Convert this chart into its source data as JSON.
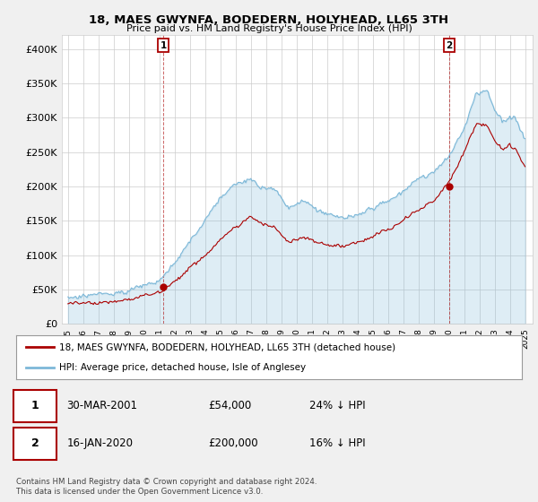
{
  "title": "18, MAES GWYNFA, BODEDERN, HOLYHEAD, LL65 3TH",
  "subtitle": "Price paid vs. HM Land Registry's House Price Index (HPI)",
  "legend_line1": "18, MAES GWYNFA, BODEDERN, HOLYHEAD, LL65 3TH (detached house)",
  "legend_line2": "HPI: Average price, detached house, Isle of Anglesey",
  "annotation1_label": "1",
  "annotation1_date": "30-MAR-2001",
  "annotation1_price": "£54,000",
  "annotation1_hpi": "24% ↓ HPI",
  "annotation2_label": "2",
  "annotation2_date": "16-JAN-2020",
  "annotation2_price": "£200,000",
  "annotation2_hpi": "16% ↓ HPI",
  "footer": "Contains HM Land Registry data © Crown copyright and database right 2024.\nThis data is licensed under the Open Government Licence v3.0.",
  "ylim": [
    0,
    420000
  ],
  "yticks": [
    0,
    50000,
    100000,
    150000,
    200000,
    250000,
    300000,
    350000,
    400000
  ],
  "ytick_labels": [
    "£0",
    "£50K",
    "£100K",
    "£150K",
    "£200K",
    "£250K",
    "£300K",
    "£350K",
    "£400K"
  ],
  "hpi_color": "#7db8d8",
  "hpi_fill_color": "#d6eaf8",
  "price_color": "#aa0000",
  "background_color": "#f0f0f0",
  "plot_bg_color": "#ffffff",
  "grid_color": "#cccccc",
  "marker1_x": 2001.25,
  "marker1_y": 54000,
  "marker2_x": 2020.04,
  "marker2_y": 200000,
  "xmin": 1995,
  "xmax": 2025
}
